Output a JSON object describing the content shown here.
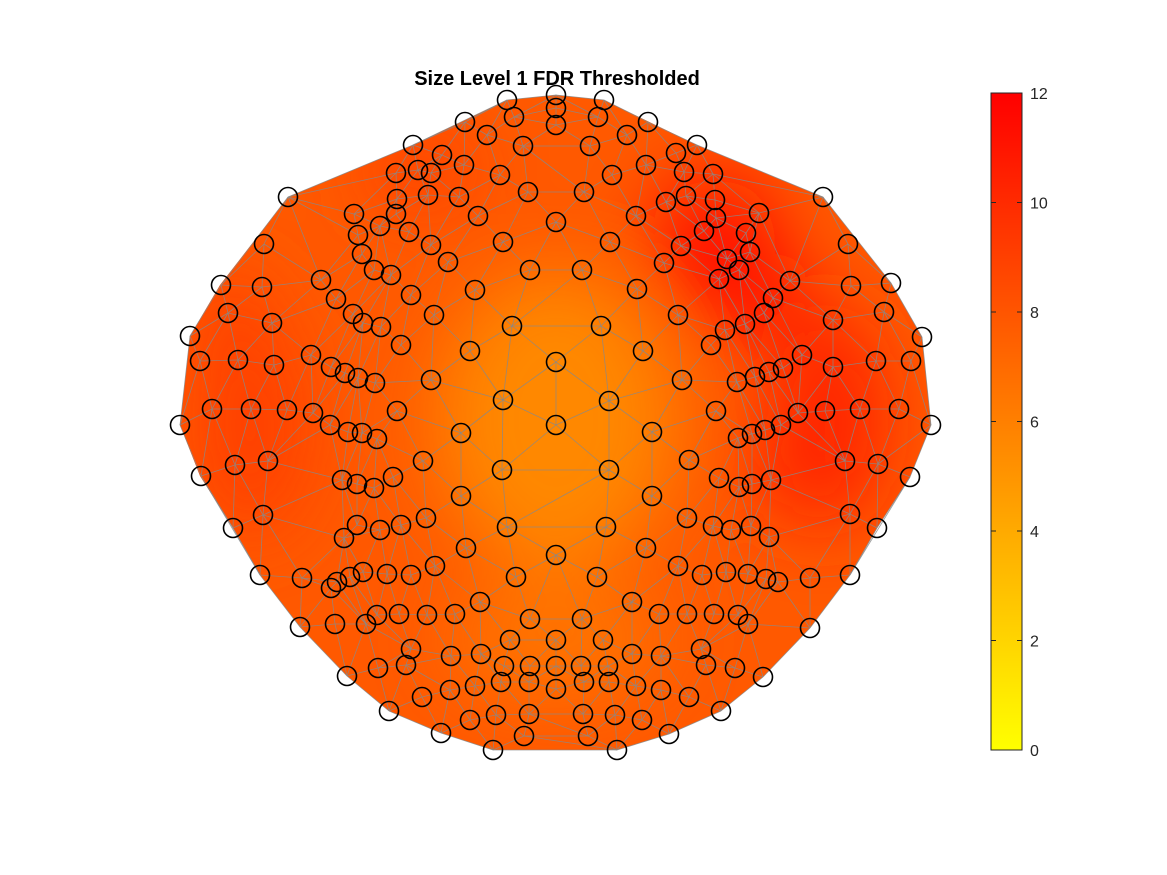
{
  "chart_data": {
    "type": "heatmap",
    "title": "Size Level 1 FDR Thresholded",
    "xlabel": "",
    "ylabel": "",
    "colorbar": {
      "min": 0,
      "max": 12,
      "ticks": [
        0,
        2,
        4,
        6,
        8,
        10,
        12
      ],
      "tick_labels": [
        "0",
        "2",
        "4",
        "6",
        "8",
        "10",
        "12"
      ],
      "colormap": "autumn (yellow to red)",
      "low_color": "#ffff00",
      "high_color": "#ff0000"
    },
    "grid": false,
    "legend": "none",
    "background_value": 7.8,
    "value_hotspots": [
      {
        "region": "center",
        "value": 5.6
      },
      {
        "region": "upper-right",
        "value": 11.2
      },
      {
        "region": "right",
        "value": 10.2
      },
      {
        "region": "left",
        "value": 9.0
      },
      {
        "region": "top-left",
        "value": 9.0
      },
      {
        "region": "lower-center",
        "value": 6.6
      }
    ],
    "sensor_marker": "open black circle",
    "mesh_color": "#888888"
  },
  "colors": {
    "marker_edge": "#000000",
    "mesh_line": "#888888",
    "axis": "#262626"
  }
}
